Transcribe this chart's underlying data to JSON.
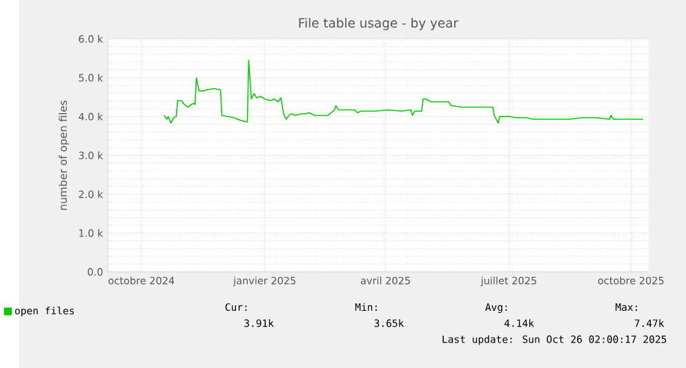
{
  "chart_data": {
    "type": "line",
    "title": "File table usage - by year",
    "ylabel": "number of open files",
    "x": [
      "2024-11-01",
      "2024-11-03",
      "2024-11-04",
      "2024-11-06",
      "2024-11-08",
      "2024-11-10",
      "2024-11-11",
      "2024-11-14",
      "2024-11-16",
      "2024-11-19",
      "2024-11-21",
      "2024-11-23",
      "2024-11-24",
      "2024-11-25",
      "2024-11-27",
      "2024-11-30",
      "2024-12-03",
      "2024-12-08",
      "2024-12-13",
      "2024-12-14",
      "2024-12-18",
      "2024-12-23",
      "2024-12-28",
      "2025-01-02",
      "2025-01-03",
      "2025-01-05",
      "2025-01-07",
      "2025-01-09",
      "2025-01-12",
      "2025-01-15",
      "2025-01-19",
      "2025-01-22",
      "2025-01-25",
      "2025-01-27",
      "2025-01-29",
      "2025-01-31",
      "2025-02-02",
      "2025-02-04",
      "2025-02-07",
      "2025-02-11",
      "2025-02-14",
      "2025-02-17",
      "2025-02-21",
      "2025-03-03",
      "2025-03-08",
      "2025-03-09",
      "2025-03-11",
      "2025-03-18",
      "2025-03-23",
      "2025-03-25",
      "2025-03-28",
      "2025-04-07",
      "2025-04-17",
      "2025-04-27",
      "2025-05-04",
      "2025-05-05",
      "2025-05-07",
      "2025-05-12",
      "2025-05-13",
      "2025-05-15",
      "2025-05-19",
      "2025-05-27",
      "2025-06-01",
      "2025-06-03",
      "2025-06-11",
      "2025-06-21",
      "2025-07-04",
      "2025-07-05",
      "2025-07-08",
      "2025-07-09",
      "2025-07-16",
      "2025-07-21",
      "2025-07-29",
      "2025-08-03",
      "2025-08-10",
      "2025-08-20",
      "2025-08-30",
      "2025-09-09",
      "2025-09-19",
      "2025-09-29",
      "2025-09-30",
      "2025-10-02",
      "2025-10-09",
      "2025-10-19",
      "2025-10-24"
    ],
    "series": [
      {
        "name": "open files",
        "color": "#00cc00",
        "values": [
          4030,
          3930,
          4000,
          3830,
          3970,
          4000,
          4410,
          4410,
          4310,
          4240,
          4310,
          4340,
          4310,
          5000,
          4660,
          4660,
          4690,
          4720,
          4690,
          4030,
          4000,
          3970,
          3900,
          3860,
          5450,
          4450,
          4590,
          4480,
          4520,
          4450,
          4410,
          4450,
          4380,
          4480,
          4070,
          3930,
          4030,
          4070,
          4030,
          4070,
          4070,
          4100,
          4030,
          4030,
          4170,
          4280,
          4170,
          4170,
          4170,
          4100,
          4140,
          4140,
          4170,
          4140,
          4170,
          4030,
          4140,
          4140,
          4450,
          4450,
          4380,
          4380,
          4380,
          4280,
          4240,
          4240,
          4240,
          4030,
          3830,
          4000,
          4000,
          3970,
          3970,
          3930,
          3930,
          3930,
          3930,
          3970,
          3970,
          3930,
          4030,
          3930,
          3930,
          3930,
          3930
        ]
      }
    ],
    "xlim": [
      "2024-09-20",
      "2025-10-28"
    ],
    "xticks": [
      {
        "value": "2024-10-15",
        "label": "octobre 2024"
      },
      {
        "value": "2025-01-15",
        "label": "janvier 2025"
      },
      {
        "value": "2025-04-15",
        "label": "avril 2025"
      },
      {
        "value": "2025-07-16",
        "label": "juillet 2025"
      },
      {
        "value": "2025-10-15",
        "label": "octobre 2025"
      }
    ],
    "ylim": [
      0,
      6000
    ],
    "yticks": [
      {
        "value": 0,
        "label": "0.0"
      },
      {
        "value": 1000,
        "label": "1.0 k"
      },
      {
        "value": 2000,
        "label": "2.0 k"
      },
      {
        "value": 3000,
        "label": "3.0 k"
      },
      {
        "value": 4000,
        "label": "4.0 k"
      },
      {
        "value": 5000,
        "label": "5.0 k"
      },
      {
        "value": 6000,
        "label": "6.0 k"
      }
    ],
    "grid": true,
    "legend": "bottom left",
    "marker": "none",
    "line_style": "solid",
    "annotations": [
      "Cur:",
      "3.91k",
      "Min:",
      "3.65k",
      "Avg:",
      "4.14k",
      "Max:",
      "7.47k",
      "Last update: Sun Oct 26 02:00:17 2025"
    ]
  }
}
